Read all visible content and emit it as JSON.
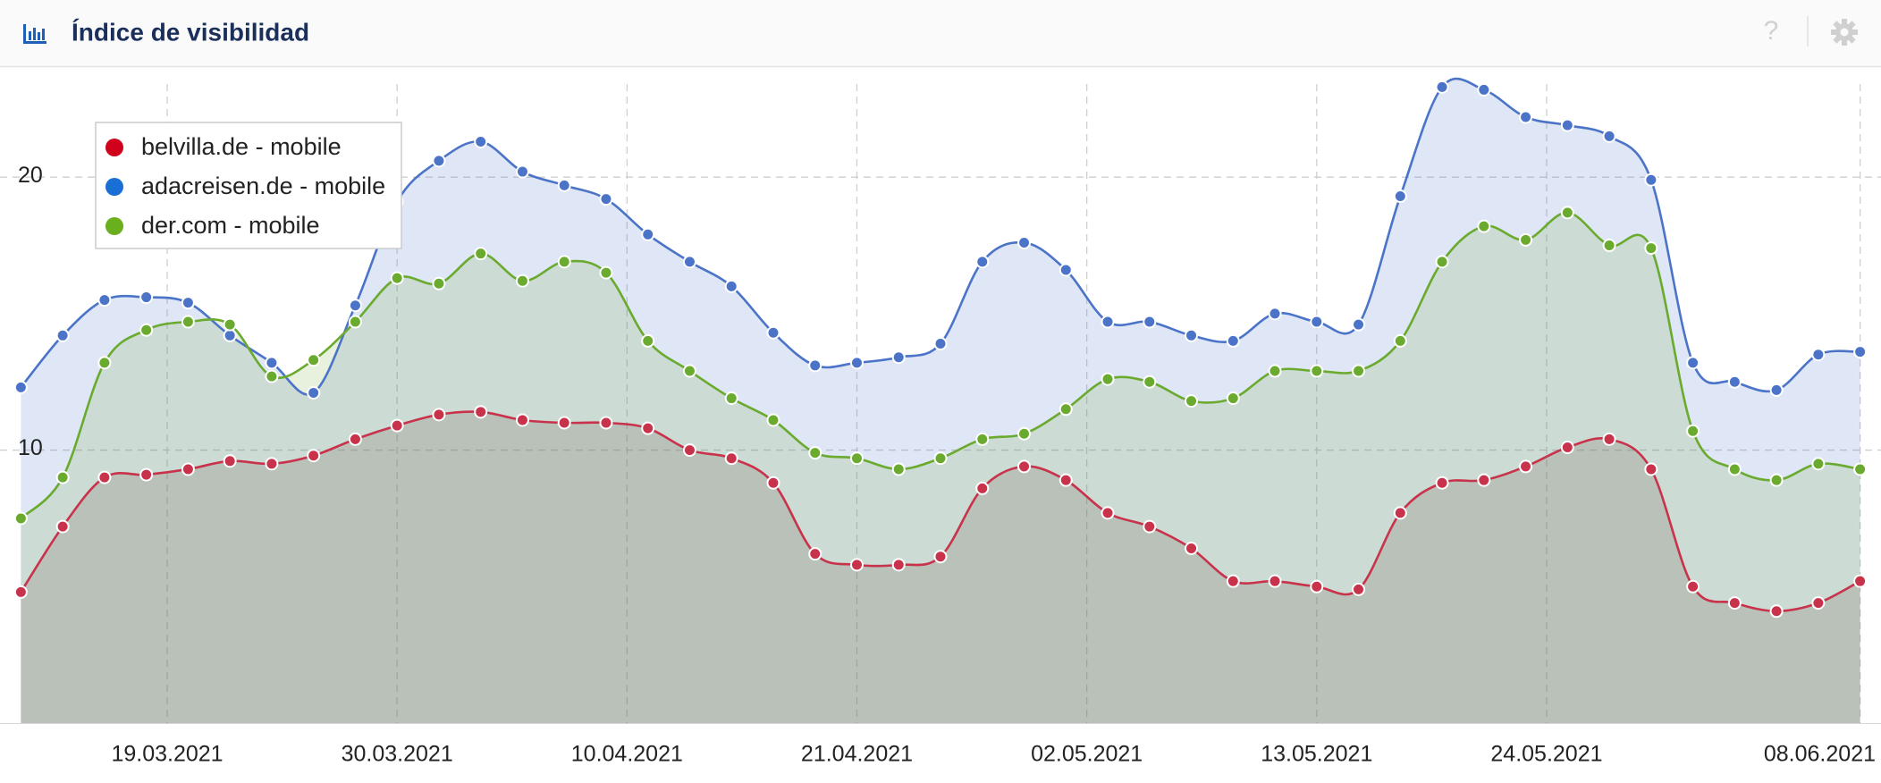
{
  "header": {
    "title": "Índice de visibilidad",
    "help": "?"
  },
  "chart_data": {
    "type": "area",
    "x": [
      "12.03.2021",
      "14.03.2021",
      "16.03.2021",
      "18.03.2021",
      "20.03.2021",
      "22.03.2021",
      "24.03.2021",
      "26.03.2021",
      "28.03.2021",
      "30.03.2021",
      "01.04.2021",
      "03.04.2021",
      "05.04.2021",
      "07.04.2021",
      "09.04.2021",
      "11.04.2021",
      "13.04.2021",
      "15.04.2021",
      "17.04.2021",
      "19.04.2021",
      "21.04.2021",
      "23.04.2021",
      "25.04.2021",
      "27.04.2021",
      "29.04.2021",
      "01.05.2021",
      "03.05.2021",
      "05.05.2021",
      "07.05.2021",
      "09.05.2021",
      "11.05.2021",
      "13.05.2021",
      "15.05.2021",
      "17.05.2021",
      "19.05.2021",
      "21.05.2021",
      "23.05.2021",
      "25.05.2021",
      "27.05.2021",
      "29.05.2021",
      "31.05.2021",
      "02.06.2021",
      "04.06.2021",
      "06.06.2021",
      "08.06.2021"
    ],
    "series": [
      {
        "name": "adacreisen.de - mobile",
        "color": "#4b74c8",
        "marker_color": "#1a6fd4",
        "values": [
          12.3,
          14.2,
          15.5,
          15.6,
          15.4,
          14.2,
          13.2,
          12.1,
          15.3,
          19.1,
          20.6,
          21.3,
          20.2,
          19.7,
          19.2,
          17.9,
          16.9,
          16.0,
          14.3,
          13.1,
          13.2,
          13.4,
          13.9,
          16.9,
          17.6,
          16.6,
          14.7,
          14.7,
          14.2,
          14.0,
          15.0,
          14.7,
          14.6,
          19.3,
          23.3,
          23.2,
          22.2,
          21.9,
          21.5,
          19.9,
          13.2,
          12.5,
          12.2,
          13.5,
          13.6
        ]
      },
      {
        "name": "der.com - mobile",
        "color": "#6aaa2e",
        "marker_color": "#6aaf1e",
        "values": [
          7.5,
          9.0,
          13.2,
          14.4,
          14.7,
          14.6,
          12.7,
          13.3,
          14.7,
          16.3,
          16.1,
          17.2,
          16.2,
          16.9,
          16.5,
          14.0,
          12.9,
          11.9,
          11.1,
          9.9,
          9.7,
          9.3,
          9.7,
          10.4,
          10.6,
          11.5,
          12.6,
          12.5,
          11.8,
          11.9,
          12.9,
          12.9,
          12.9,
          14.0,
          16.9,
          18.2,
          17.7,
          18.7,
          17.5,
          17.4,
          10.7,
          9.3,
          8.9,
          9.5,
          9.3
        ]
      },
      {
        "name": "belvilla.de - mobile",
        "color": "#c8324a",
        "marker_color": "#d0021b",
        "values": [
          4.8,
          7.2,
          9.0,
          9.1,
          9.3,
          9.6,
          9.5,
          9.8,
          10.4,
          10.9,
          11.3,
          11.4,
          11.1,
          11.0,
          11.0,
          10.8,
          10.0,
          9.7,
          8.8,
          6.2,
          5.8,
          5.8,
          6.1,
          8.6,
          9.4,
          8.9,
          7.7,
          7.2,
          6.4,
          5.2,
          5.2,
          5.0,
          4.9,
          7.7,
          8.8,
          8.9,
          9.4,
          10.1,
          10.4,
          9.3,
          5.0,
          4.4,
          4.1,
          4.4,
          5.2
        ]
      }
    ],
    "legend_order": [
      2,
      0,
      1
    ],
    "xlim": [
      "11.03.2021",
      "09.06.2021"
    ],
    "xticks": [
      "19.03.2021",
      "30.03.2021",
      "10.04.2021",
      "21.04.2021",
      "02.05.2021",
      "13.05.2021",
      "24.05.2021",
      "08.06.2021"
    ],
    "ylim": [
      0,
      24
    ],
    "yticks": [
      10,
      20
    ],
    "grid": true,
    "legend": "upper left"
  }
}
